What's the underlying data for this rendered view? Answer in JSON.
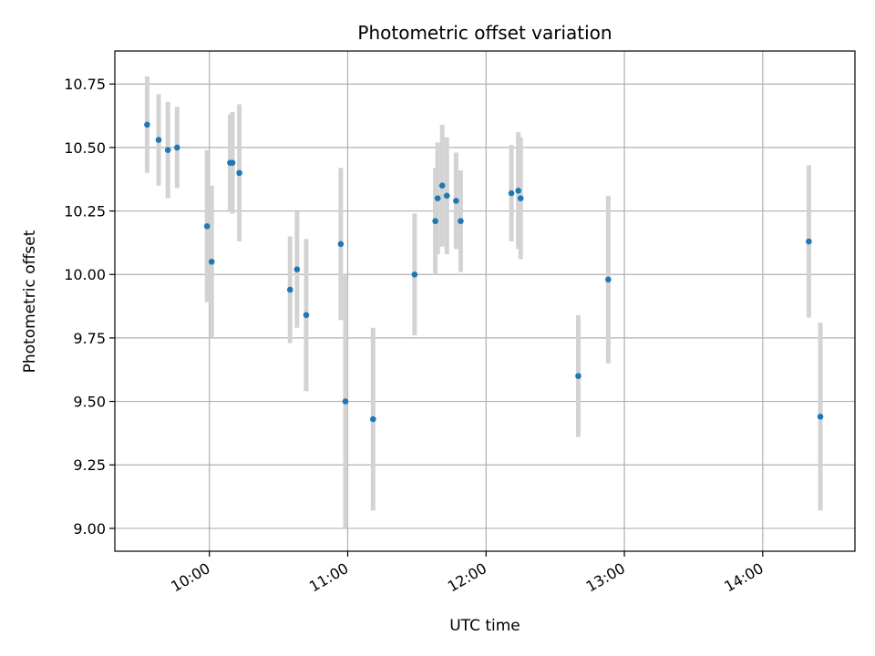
{
  "chart_data": {
    "type": "scatter",
    "title": "Photometric offset variation",
    "xlabel": "UTC time",
    "ylabel": "Photometric offset",
    "x_unit": "UTC time (HH:MM)",
    "xlim": [
      "09:19",
      "14:40"
    ],
    "ylim": [
      8.91,
      10.88
    ],
    "x_ticks": [
      "10:00",
      "11:00",
      "12:00",
      "13:00",
      "14:00"
    ],
    "y_ticks": [
      "9.00",
      "9.25",
      "9.50",
      "9.75",
      "10.00",
      "10.25",
      "10.50",
      "10.75"
    ],
    "grid": true,
    "errorbar_color": "#d3d3d3",
    "marker_color": "#1f77b4",
    "points": [
      {
        "x": "09:33",
        "y": 10.59,
        "err": 0.19
      },
      {
        "x": "09:38",
        "y": 10.53,
        "err": 0.18
      },
      {
        "x": "09:42",
        "y": 10.49,
        "err": 0.19
      },
      {
        "x": "09:46",
        "y": 10.5,
        "err": 0.16
      },
      {
        "x": "09:59",
        "y": 10.19,
        "err": 0.3
      },
      {
        "x": "10:01",
        "y": 10.05,
        "err": 0.3
      },
      {
        "x": "10:09",
        "y": 10.44,
        "err": 0.19
      },
      {
        "x": "10:10",
        "y": 10.44,
        "err": 0.2
      },
      {
        "x": "10:13",
        "y": 10.4,
        "err": 0.27
      },
      {
        "x": "10:35",
        "y": 9.94,
        "err": 0.21
      },
      {
        "x": "10:38",
        "y": 10.02,
        "err": 0.23
      },
      {
        "x": "10:42",
        "y": 9.84,
        "err": 0.3
      },
      {
        "x": "10:57",
        "y": 10.12,
        "err": 0.3
      },
      {
        "x": "10:59",
        "y": 9.5,
        "err": 0.5
      },
      {
        "x": "11:11",
        "y": 9.43,
        "err": 0.36
      },
      {
        "x": "11:29",
        "y": 10.0,
        "err": 0.24
      },
      {
        "x": "11:38",
        "y": 10.21,
        "err": 0.21
      },
      {
        "x": "11:39",
        "y": 10.3,
        "err": 0.22
      },
      {
        "x": "11:41",
        "y": 10.35,
        "err": 0.24
      },
      {
        "x": "11:43",
        "y": 10.31,
        "err": 0.23
      },
      {
        "x": "11:47",
        "y": 10.29,
        "err": 0.19
      },
      {
        "x": "11:49",
        "y": 10.21,
        "err": 0.2
      },
      {
        "x": "12:11",
        "y": 10.32,
        "err": 0.19
      },
      {
        "x": "12:14",
        "y": 10.33,
        "err": 0.23
      },
      {
        "x": "12:15",
        "y": 10.3,
        "err": 0.24
      },
      {
        "x": "12:40",
        "y": 9.6,
        "err": 0.24
      },
      {
        "x": "12:53",
        "y": 9.98,
        "err": 0.33
      },
      {
        "x": "14:20",
        "y": 10.13,
        "err": 0.3
      },
      {
        "x": "14:25",
        "y": 9.44,
        "err": 0.37
      }
    ]
  }
}
